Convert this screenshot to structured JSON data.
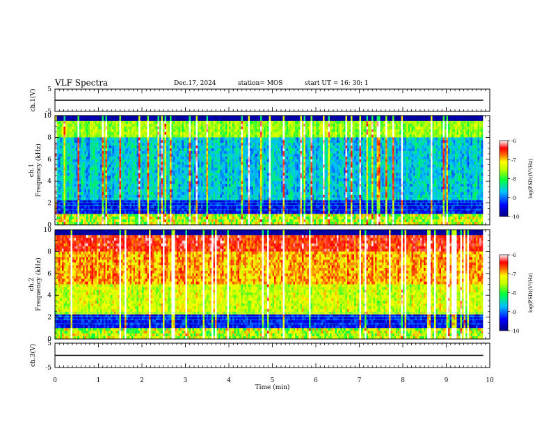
{
  "header": {
    "title": "VLF Spectra",
    "date": "Dec.17, 2024",
    "station": "station= MOS",
    "start": "start  UT =   16: 30: 1"
  },
  "chart_data": [
    {
      "type": "line",
      "panel": "ch1-waveform",
      "ylabel": "ch.1(V)",
      "ylim": [
        -5,
        5
      ],
      "yticks": [
        "5",
        "-5"
      ],
      "xlim": [
        0,
        10
      ],
      "series": [
        {
          "x": [
            0,
            9.85
          ],
          "values": [
            0,
            0
          ]
        }
      ]
    },
    {
      "type": "heatmap",
      "panel": "ch1-spectrogram",
      "ylabel": "ch.1",
      "ylabel2": "Frequency (kHz)",
      "ylim": [
        0,
        10
      ],
      "yticks": [
        "0",
        "2",
        "4",
        "6",
        "8",
        "10"
      ],
      "xlim": [
        0,
        10
      ],
      "data_end_min": 9.85,
      "colorbar": {
        "label": "log(PSD)(V²/Hz)",
        "range": [
          -10,
          -6
        ],
        "ticks": [
          "-6",
          "-7",
          "-8",
          "-9",
          "-10"
        ]
      }
    },
    {
      "type": "heatmap",
      "panel": "ch2-spectrogram",
      "ylabel": "ch.2",
      "ylabel2": "Frequency (kHz)",
      "ylim": [
        0,
        10
      ],
      "yticks": [
        "0",
        "2",
        "4",
        "6",
        "8",
        "10"
      ],
      "xlim": [
        0,
        10
      ],
      "data_end_min": 9.85,
      "colorbar": {
        "label": "log(PSD)(V²/Hz)",
        "range": [
          -10,
          -6
        ],
        "ticks": [
          "-6",
          "-7",
          "-8",
          "-9",
          "-10"
        ]
      }
    },
    {
      "type": "line",
      "panel": "ch3-waveform",
      "ylabel": "ch.3(V)",
      "ylim": [
        -5,
        5
      ],
      "yticks": [
        "5",
        "-5"
      ],
      "xlim": [
        0,
        10
      ],
      "xlabel": "Time (min)",
      "xticks": [
        "0",
        "1",
        "2",
        "3",
        "4",
        "5",
        "6",
        "7",
        "8",
        "9",
        "10"
      ],
      "series": [
        {
          "x": [
            0,
            9.85
          ],
          "values": [
            0,
            0
          ]
        }
      ]
    }
  ],
  "colors": {
    "background": "#ffffff",
    "axes": "#000000",
    "trace": "#000000"
  }
}
